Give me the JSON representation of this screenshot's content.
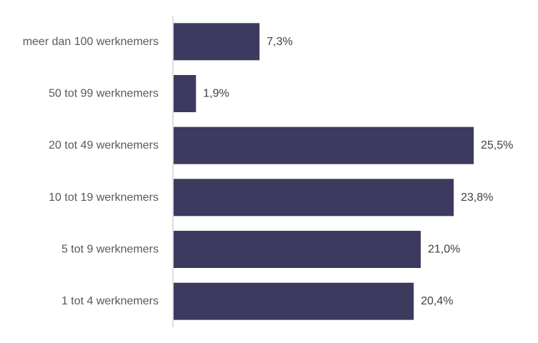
{
  "chart_data": {
    "type": "bar",
    "orientation": "horizontal",
    "categories": [
      "meer dan 100 werknemers",
      "50 tot 99 werknemers",
      "20 tot 49 werknemers",
      "10 tot 19 werknemers",
      "5 tot 9 werknemers",
      "1 tot 4 werknemers"
    ],
    "values": [
      7.3,
      1.9,
      25.5,
      23.8,
      21.0,
      20.4
    ],
    "value_labels": [
      "7,3%",
      "1,9%",
      "25,5%",
      "23,8%",
      "21,0%",
      "20,4%"
    ],
    "title": "",
    "xlabel": "",
    "ylabel": "",
    "xlim": [
      0,
      26.5
    ],
    "grid": false,
    "legend": "none",
    "bar_color": "#3c3a5e",
    "axis_color": "#bfbfbf"
  }
}
